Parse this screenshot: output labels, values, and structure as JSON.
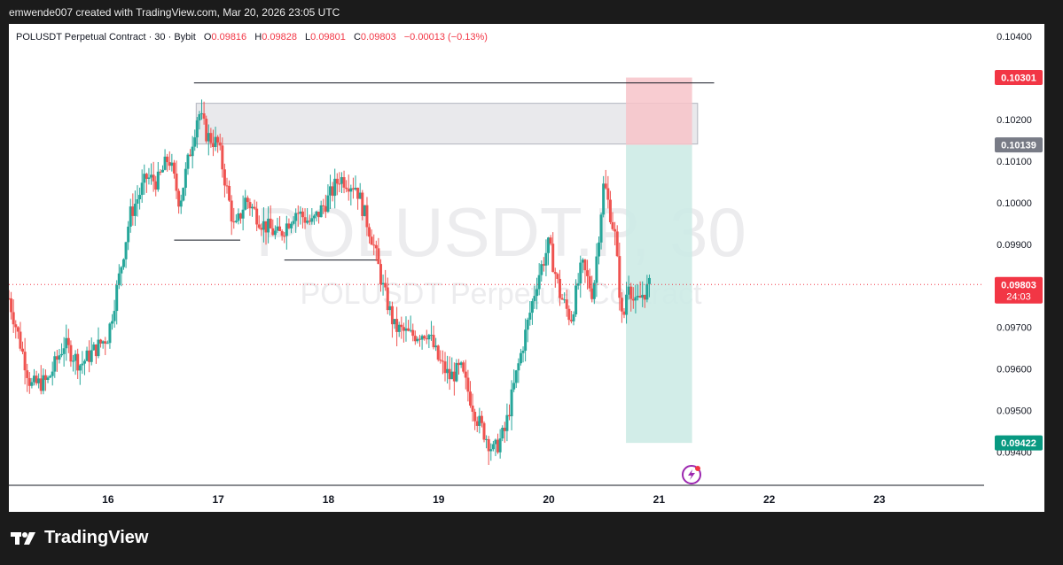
{
  "header": {
    "credit": "emwende007 created with TradingView.com, Mar 20, 2026 23:05 UTC"
  },
  "legend": {
    "symbol": "POLUSDT Perpetual Contract · 30 · Bybit",
    "o_label": "O",
    "o_value": "0.09816",
    "h_label": "H",
    "h_value": "0.09828",
    "l_label": "L",
    "l_value": "0.09801",
    "c_label": "C",
    "c_value": "0.09803",
    "change": "−0.00013 (−0.13%)"
  },
  "watermark": {
    "big": "POLUSDT.P, 30",
    "small": "POLUSDT Perpetual Contract"
  },
  "price_badges": {
    "stop": "0.10301",
    "entry": "0.10139",
    "last": "0.09803",
    "countdown": "24:03",
    "target": "0.09422"
  },
  "colors": {
    "up": "#26a69a",
    "down": "#ef5350",
    "stop_badge": "#f23645",
    "entry_badge": "#787b86",
    "target_badge": "#089981",
    "stop_zone": "#f7c3c9",
    "target_zone": "#cdebe6",
    "supply_zone": "#e9e9ec"
  },
  "footer": {
    "brand": "TradingView"
  },
  "chart_data": {
    "type": "candlestick",
    "title": "POLUSDT Perpetual Contract · 30 · Bybit",
    "x_tick_labels": [
      "16",
      "17",
      "18",
      "19",
      "20",
      "21",
      "22",
      "23"
    ],
    "x_tick_days": [
      16,
      17,
      18,
      19,
      20,
      21,
      22,
      23
    ],
    "y_tick_labels": [
      "0.10400",
      "0.10200",
      "0.10100",
      "0.10000",
      "0.09900",
      "0.09700",
      "0.09600",
      "0.09500",
      "0.09400"
    ],
    "y_ticks": [
      0.104,
      0.102,
      0.101,
      0.1,
      0.099,
      0.097,
      0.096,
      0.095,
      0.094
    ],
    "y_range": [
      0.0932,
      0.1043
    ],
    "x_range_days": [
      15.1,
      23.95
    ],
    "last_price": 0.09803,
    "close_path_days": [
      15.1,
      15.3,
      15.45,
      15.6,
      15.75,
      16.0,
      16.1,
      16.2,
      16.35,
      16.45,
      16.55,
      16.65,
      16.75,
      16.82,
      16.9,
      17.0,
      17.1,
      17.15,
      17.25,
      17.4,
      17.55,
      17.7,
      17.85,
      18.0,
      18.1,
      18.25,
      18.4,
      18.5,
      18.6,
      18.75,
      18.9,
      19.0,
      19.1,
      19.2,
      19.35,
      19.5,
      19.6,
      19.7,
      19.8,
      19.9,
      20.0,
      20.1,
      20.2,
      20.3,
      20.4,
      20.5,
      20.6,
      20.67,
      20.72,
      20.78,
      20.85,
      20.92
    ],
    "close_path_values": [
      0.0977,
      0.0956,
      0.0957,
      0.0966,
      0.0961,
      0.0968,
      0.0982,
      0.0997,
      0.1006,
      0.1005,
      0.1011,
      0.1,
      0.1013,
      0.1022,
      0.1016,
      0.1014,
      0.1,
      0.0993,
      0.1001,
      0.0995,
      0.0992,
      0.0998,
      0.0995,
      0.1001,
      0.1006,
      0.1004,
      0.0991,
      0.0979,
      0.097,
      0.0968,
      0.0969,
      0.0962,
      0.0958,
      0.096,
      0.0948,
      0.094,
      0.0945,
      0.0958,
      0.097,
      0.0982,
      0.099,
      0.0978,
      0.0972,
      0.0985,
      0.0978,
      0.1005,
      0.0992,
      0.097,
      0.0982,
      0.0975,
      0.0978,
      0.098
    ],
    "horizontal_levels": [
      {
        "from_day": 16.78,
        "to_day": 21.5,
        "value": 0.10288
      },
      {
        "from_day": 16.6,
        "to_day": 17.2,
        "value": 0.0991
      },
      {
        "from_day": 17.6,
        "to_day": 18.45,
        "value": 0.09862
      }
    ],
    "supply_zone": {
      "from_day": 16.8,
      "to_day": 21.35,
      "low": 0.10141,
      "high": 0.10239
    },
    "short_position": {
      "from_day": 20.7,
      "to_day": 21.3,
      "entry": 0.10139,
      "stop": 0.10301,
      "target": 0.09422
    }
  }
}
